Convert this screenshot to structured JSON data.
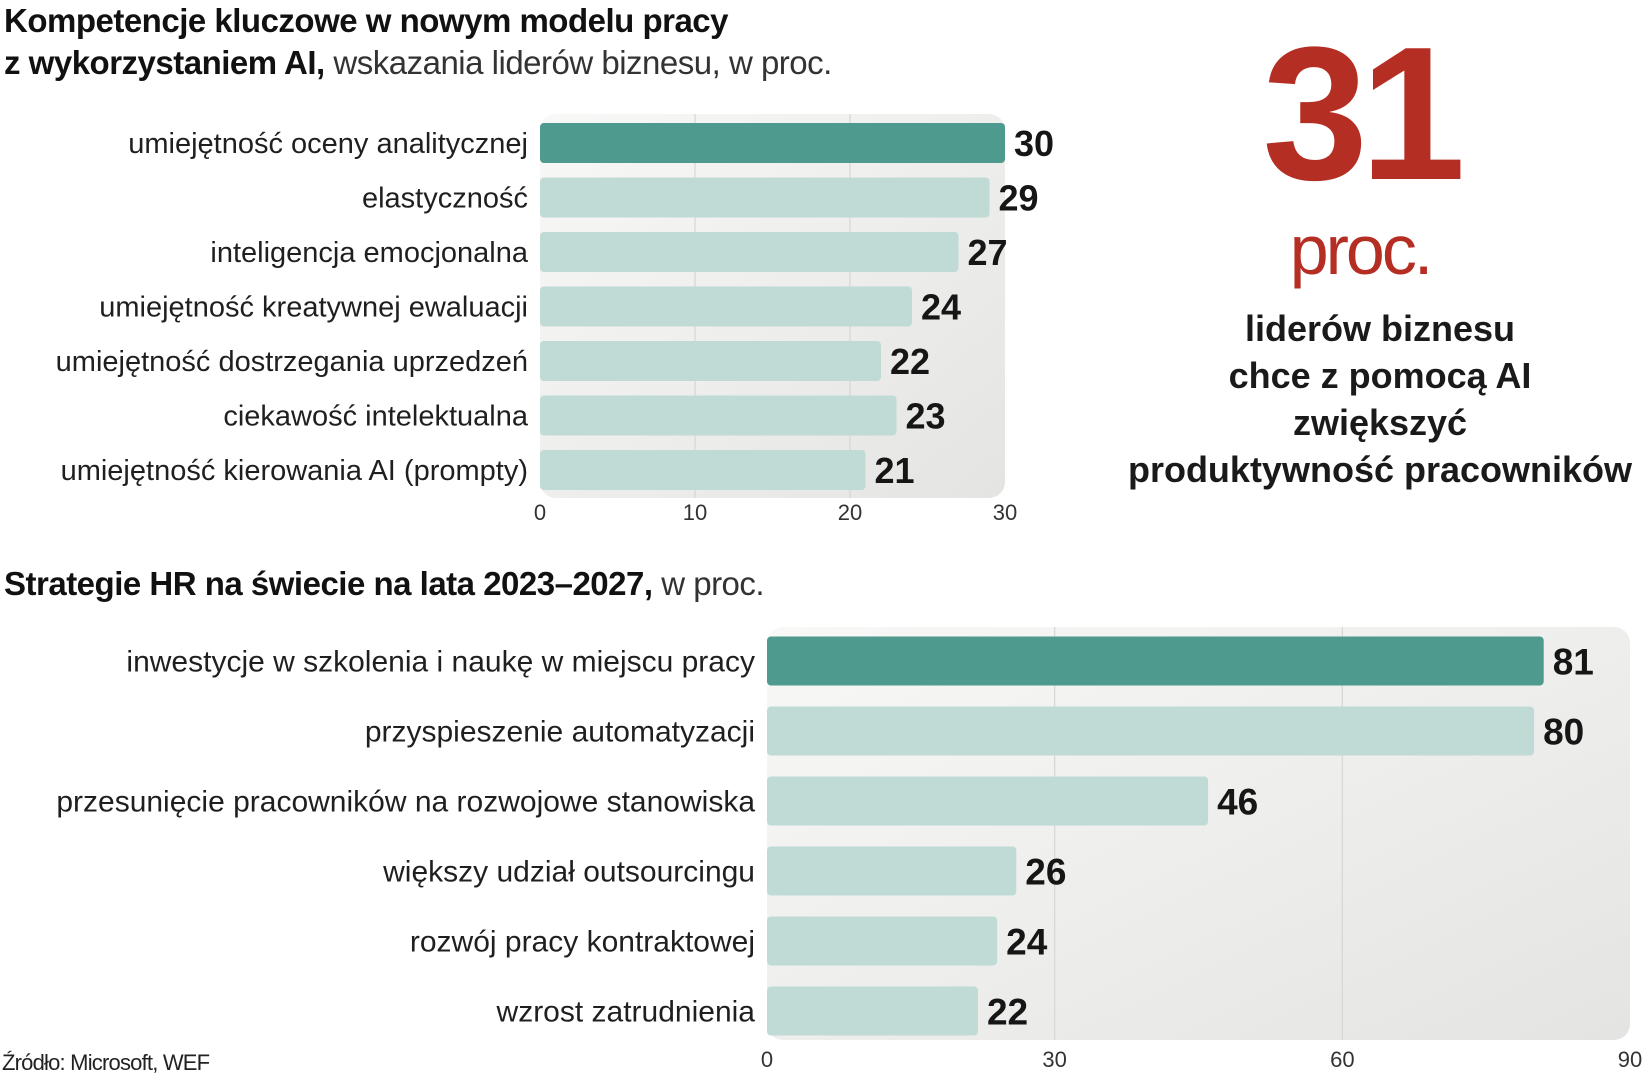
{
  "chart_data": [
    {
      "type": "bar",
      "orientation": "horizontal",
      "title": "Kompetencje kluczowe w nowym modelu pracy z wykorzystaniem AI,",
      "subtitle": "wskazania liderów biznesu, w proc.",
      "title_line1": "Kompetencje kluczowe w nowym modelu pracy",
      "title_line2": "z wykorzystaniem AI,",
      "categories": [
        "umiejętność oceny analitycznej",
        "elastyczność",
        "inteligencja emocjonalna",
        "umiejętność kreatywnej ewaluacji",
        "umiejętność dostrzegania uprzedzeń",
        "ciekawość intelektualna",
        "umiejętność kierowania AI (prompty)"
      ],
      "values": [
        30,
        29,
        27,
        24,
        22,
        23,
        21
      ],
      "highlight_index": 0,
      "xlim": [
        0,
        30
      ],
      "xticks": [
        0,
        10,
        20,
        30
      ],
      "grid": true
    },
    {
      "type": "bar",
      "orientation": "horizontal",
      "title": "Strategie HR na świecie na lata 2023–2027,",
      "subtitle": "w proc.",
      "categories": [
        "inwestycje w szkolenia i naukę w miejscu pracy",
        "przyspieszenie automatyzacji",
        "przesunięcie pracowników na rozwojowe stanowiska",
        "większy udział outsourcingu",
        "rozwój pracy kontraktowej",
        "wzrost zatrudnienia"
      ],
      "values": [
        81,
        80,
        46,
        26,
        24,
        22
      ],
      "highlight_index": 0,
      "xlim": [
        0,
        90
      ],
      "xticks": [
        0,
        30,
        60,
        90
      ],
      "grid": true
    }
  ],
  "highlight_stat": {
    "number": "31",
    "unit": "proc.",
    "description": [
      "liderów biznesu",
      "chce z pomocą AI",
      "zwiększyć",
      "produktywność pracowników"
    ]
  },
  "source": "Źródło: Microsoft, WEF",
  "colors": {
    "bar_highlight": "#4f9a8f",
    "bar_default": "#c0dbd5",
    "accent_red": "#b52e24",
    "panel_start": "#f8f8f7",
    "panel_end": "#e4e4e2"
  }
}
